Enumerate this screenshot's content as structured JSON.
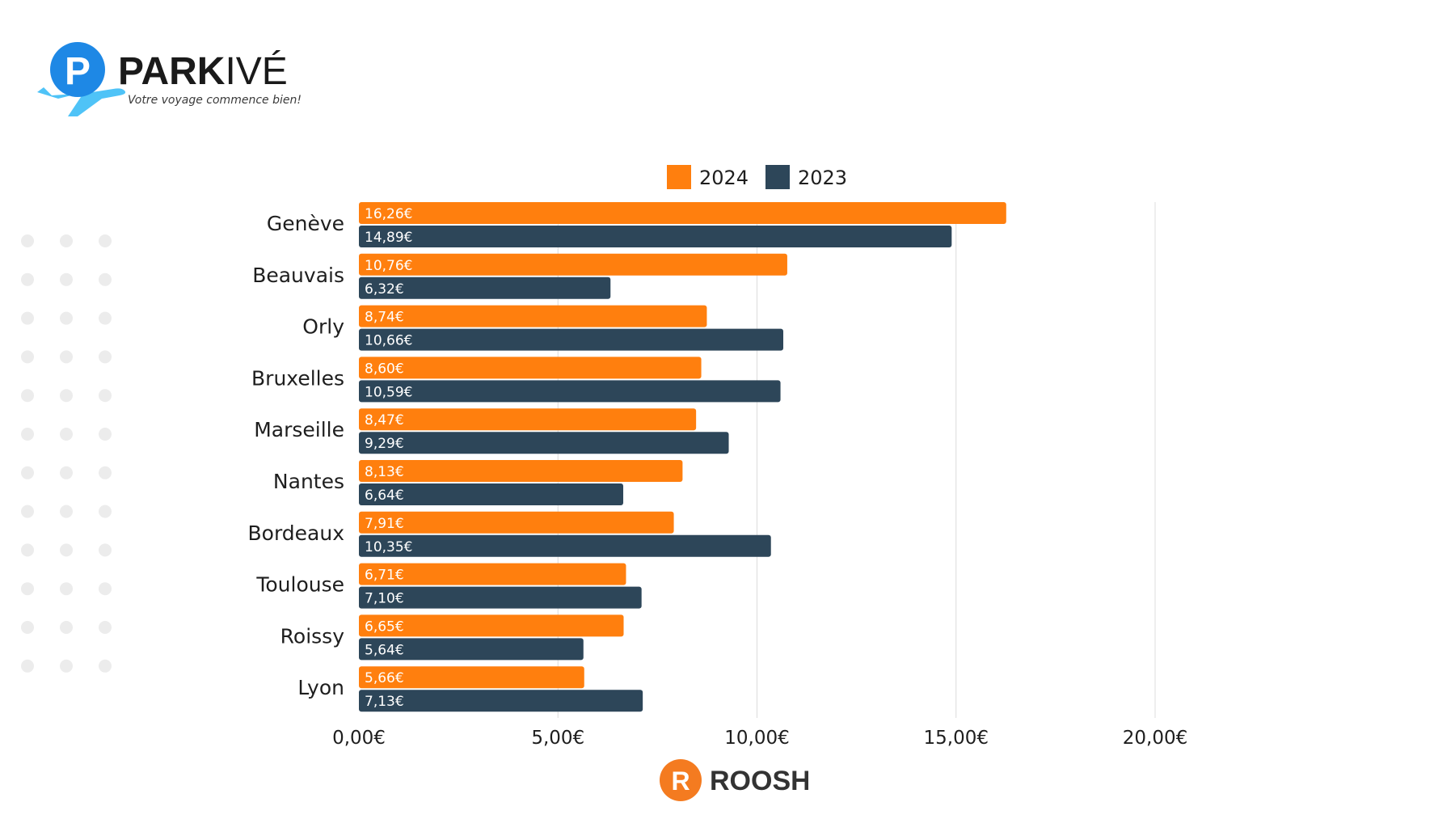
{
  "brand": {
    "name_bold": "PARK",
    "name_light": "IVÉ",
    "tagline": "Votre voyage commence bien!",
    "logo_letter": "P",
    "primary_color": "#1e88e5",
    "accent_color": "#4fc3f7"
  },
  "footer": {
    "brand": "ROOSH",
    "dot": ".",
    "logo_letter": "R",
    "accent_color": "#f47b20"
  },
  "colors": {
    "series_2024": "#ff7f0e",
    "series_2023": "#2d4659",
    "grid": "#dcdcdc",
    "dots": "#ececec"
  },
  "chart_data": {
    "type": "bar",
    "orientation": "horizontal",
    "categories": [
      "Genève",
      "Beauvais",
      "Orly",
      "Bruxelles",
      "Marseille",
      "Nantes",
      "Bordeaux",
      "Toulouse",
      "Roissy",
      "Lyon"
    ],
    "series": [
      {
        "name": "2024",
        "values": [
          16.26,
          10.76,
          8.74,
          8.6,
          8.47,
          8.13,
          7.91,
          6.71,
          6.65,
          5.66
        ],
        "labels": [
          "16,26€",
          "10,76€",
          "8,74€",
          "8,60€",
          "8,47€",
          "8,13€",
          "7,91€",
          "6,71€",
          "6,65€",
          "5,66€"
        ]
      },
      {
        "name": "2023",
        "values": [
          14.89,
          6.32,
          10.66,
          10.59,
          9.29,
          6.64,
          10.35,
          7.1,
          5.64,
          7.13
        ],
        "labels": [
          "14,89€",
          "6,32€",
          "10,66€",
          "10,59€",
          "9,29€",
          "6,64€",
          "10,35€",
          "7,10€",
          "5,64€",
          "7,13€"
        ]
      }
    ],
    "xlim": [
      0,
      20
    ],
    "ticks": [
      0,
      5,
      10,
      15,
      20
    ],
    "tick_labels": [
      "0,00€",
      "5,00€",
      "10,00€",
      "15,00€",
      "20,00€"
    ],
    "legend": [
      "2024",
      "2023"
    ],
    "legend_position": "top",
    "grid": true,
    "title": "",
    "xlabel": "",
    "ylabel": ""
  }
}
